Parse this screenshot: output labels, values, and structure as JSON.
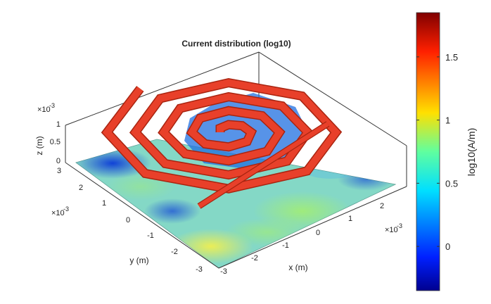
{
  "chart_data": {
    "type": "surface3d",
    "title": "Current distribution (log10)",
    "xlabel": "x (m)",
    "ylabel": "y (m)",
    "zlabel": "z (m)",
    "x_scale_label": "×10",
    "x_scale_exp": "-3",
    "y_scale_label": "×10",
    "y_scale_exp": "-3",
    "z_scale_label": "×10",
    "z_scale_exp": "-3",
    "x_ticks": [
      "-3",
      "-2",
      "-1",
      "0",
      "1",
      "2"
    ],
    "y_ticks": [
      "-3",
      "-2",
      "-1",
      "0",
      "1",
      "2",
      "3"
    ],
    "z_ticks": [
      "0",
      "0.5",
      "1"
    ],
    "xlim": [
      -3,
      3
    ],
    "ylim": [
      -3,
      3
    ],
    "zlim": [
      0,
      1.6
    ],
    "colorbar": {
      "label": "log10(A/m)",
      "colormap": "jet",
      "range": [
        -0.35,
        1.85
      ],
      "ticks": [
        "0",
        "0.5",
        "1",
        "1.5"
      ],
      "tick_values": [
        0,
        0.5,
        1,
        1.5
      ]
    },
    "ground_plane_level": "~0.6 (cyan-green), dark blue at corners, yellow near front edge",
    "spiral_level": "~1.6 (red-orange), octagonal spiral antenna with feed line",
    "colors": {
      "spiral": "#e8402a",
      "spiral_edge": "#a82410",
      "plane": "#7dd3c8"
    }
  }
}
